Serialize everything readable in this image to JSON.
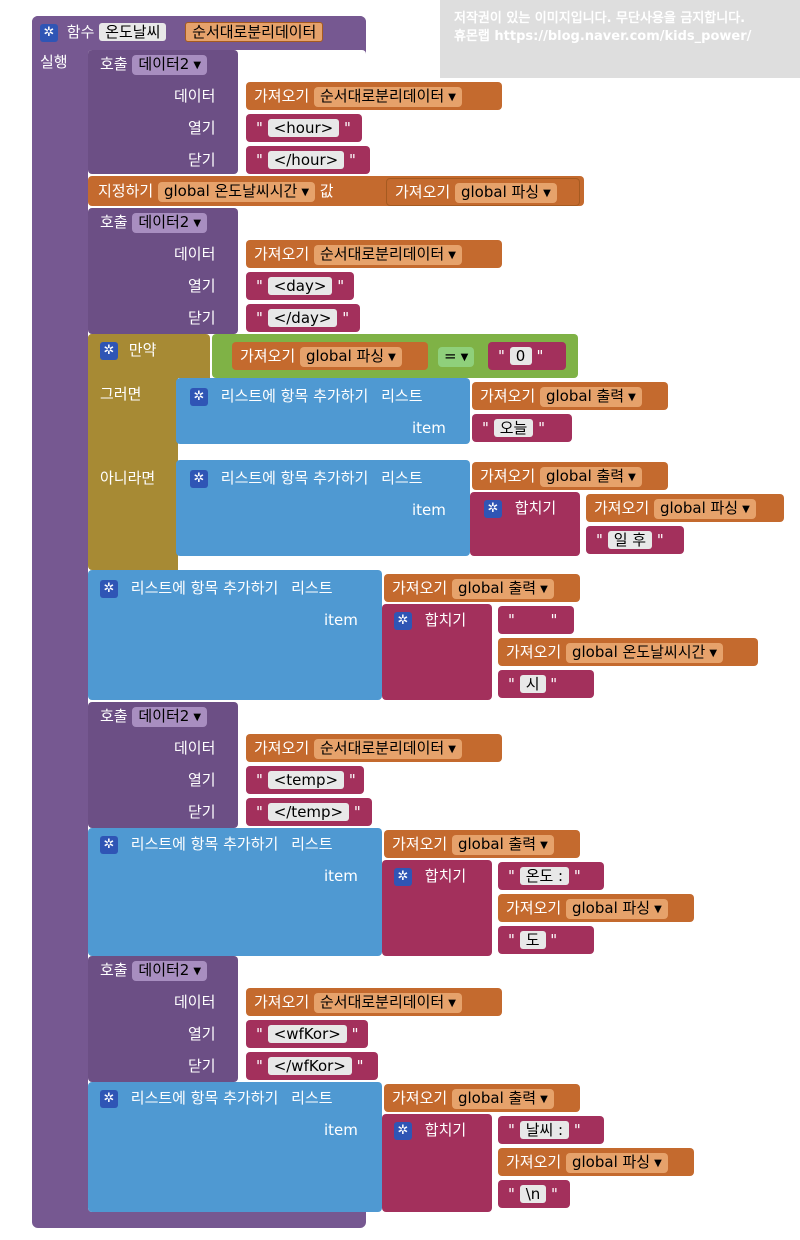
{
  "watermark": {
    "line1": "저작권이 있는 이미지입니다. 무단사용을 금지합니다.",
    "line2": "휴몬랩 https://blog.naver.com/kids_power/"
  },
  "procedure": {
    "keyword": "함수",
    "name": "온도날씨",
    "param": "순서대로분리데이터",
    "body_label": "실행"
  },
  "labels": {
    "call": "호출",
    "data": "데이터",
    "open": "열기",
    "close": "닫기",
    "get": "가져오기",
    "set": "지정하기",
    "value": "값",
    "if": "만약",
    "then": "그러면",
    "else": "아니라면",
    "add_items": "리스트에 항목 추가하기",
    "list": "리스트",
    "item": "item",
    "join": "합치기",
    "quote": "\"",
    "eq": "="
  },
  "vars": {
    "call_proc": "데이터2",
    "sorted_data": "순서대로분리데이터",
    "parse": "global 파싱",
    "output": "global 출력",
    "time_var": "global 온도날씨시간"
  },
  "strings": {
    "hour_open": "<hour>",
    "hour_close": "</hour>",
    "day_open": "<day>",
    "day_close": "</day>",
    "zero": "0",
    "today": "오늘",
    "days_later": "일 후",
    "space": "",
    "hour_suffix": "시",
    "temp_open": "<temp>",
    "temp_close": "</temp>",
    "temp_prefix": "온도 :",
    "deg": "도",
    "wf_open": "<wfKor>",
    "wf_close": "</wfKor>",
    "weather_prefix": "날씨 :",
    "newline": "\\n"
  },
  "colors": {
    "procedure": "#765891",
    "call": "#6c4f85",
    "variable": "#c46a2e",
    "text": "#a3305c",
    "control": "#a78a34",
    "list": "#4f99d2",
    "logic": "#7fb246"
  }
}
